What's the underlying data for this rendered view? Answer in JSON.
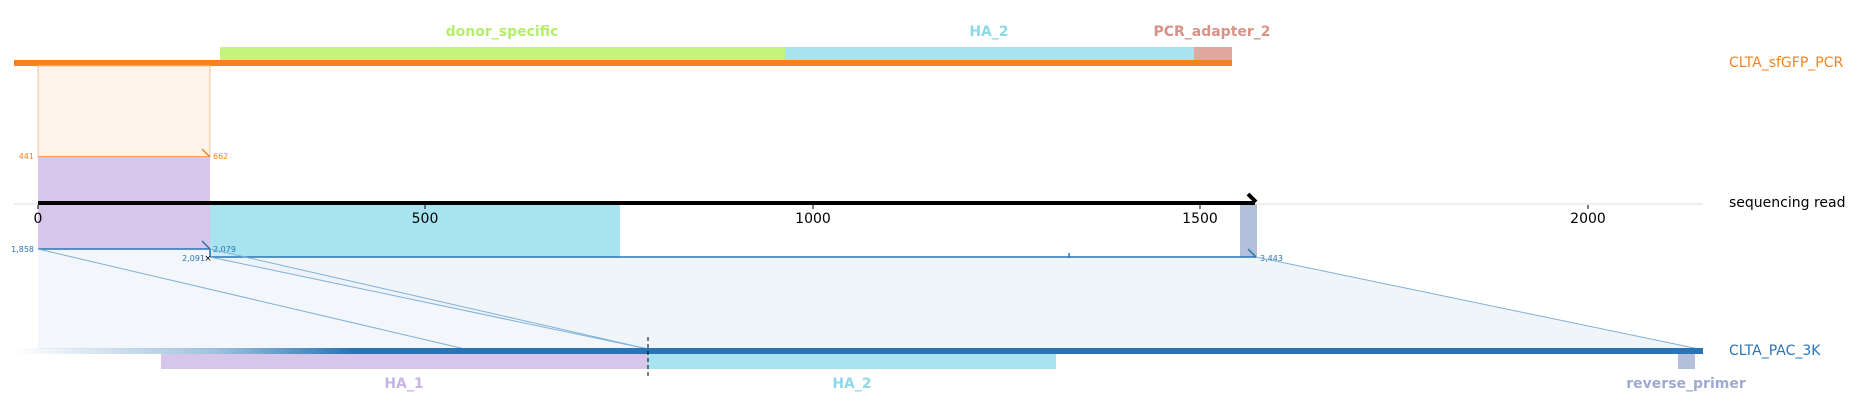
{
  "colors": {
    "donor_specific": "#c4f57a",
    "ha2": "#a8e4ef",
    "ha1": "#d8c6ea",
    "pcr_adapter": "#e2a79e",
    "reverse_primer": "#b4bfd9",
    "orange": "#f5821f",
    "blue": "#2a74b3",
    "black": "#000000"
  },
  "top_features": {
    "donor_specific": "donor_specific",
    "ha2": "HA_2",
    "pcr_adapter": "PCR_adapter_2"
  },
  "bottom_features": {
    "ha1": "HA_1",
    "ha2": "HA_2",
    "reverse_primer": "reverse_primer"
  },
  "track_labels": {
    "top": "CLTA_sfGFP_PCR",
    "middle": "sequencing read",
    "bottom": "CLTA_PAC_3K"
  },
  "axis": {
    "ticks": [
      "0",
      "500",
      "1000",
      "1500",
      "2000"
    ]
  },
  "alignment_labels": {
    "top_start": "441",
    "top_end": "662",
    "bottom_start": "1,858",
    "bottom_mid_a": "2,091",
    "bottom_mid_b": "2,079",
    "bottom_end": "3,443"
  }
}
